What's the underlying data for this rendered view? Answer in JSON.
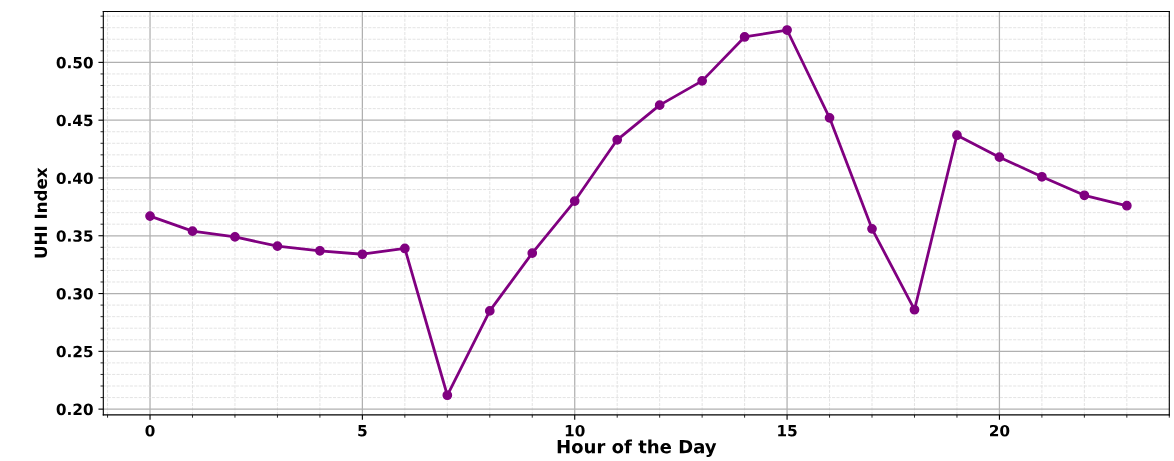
{
  "chart_data": {
    "type": "line",
    "xlabel": "Hour of the Day",
    "ylabel": "UHI Index",
    "x": [
      0,
      1,
      2,
      3,
      4,
      5,
      6,
      7,
      8,
      9,
      10,
      11,
      12,
      13,
      14,
      15,
      16,
      17,
      18,
      19,
      20,
      21,
      22,
      23
    ],
    "series": [
      {
        "color": "#800080",
        "values": [
          0.367,
          0.354,
          0.349,
          0.341,
          0.337,
          0.334,
          0.339,
          0.212,
          0.285,
          0.335,
          0.38,
          0.433,
          0.463,
          0.484,
          0.522,
          0.528,
          0.452,
          0.356,
          0.286,
          0.437,
          0.418,
          0.401,
          0.385,
          0.376
        ]
      }
    ],
    "xlim": [
      -1.1,
      24.0
    ],
    "ylim": [
      0.195,
      0.544
    ],
    "xticks": [
      0,
      5,
      10,
      15,
      20
    ],
    "yticks": [
      {
        "value": 0.2,
        "label": "0.20"
      },
      {
        "value": 0.25,
        "label": "0.25"
      },
      {
        "value": 0.3,
        "label": "0.30"
      },
      {
        "value": 0.35,
        "label": "0.35"
      },
      {
        "value": 0.4,
        "label": "0.40"
      },
      {
        "value": 0.45,
        "label": "0.45"
      },
      {
        "value": 0.5,
        "label": "0.50"
      }
    ],
    "grid": true,
    "marker": "circle",
    "line_style": "solid"
  }
}
